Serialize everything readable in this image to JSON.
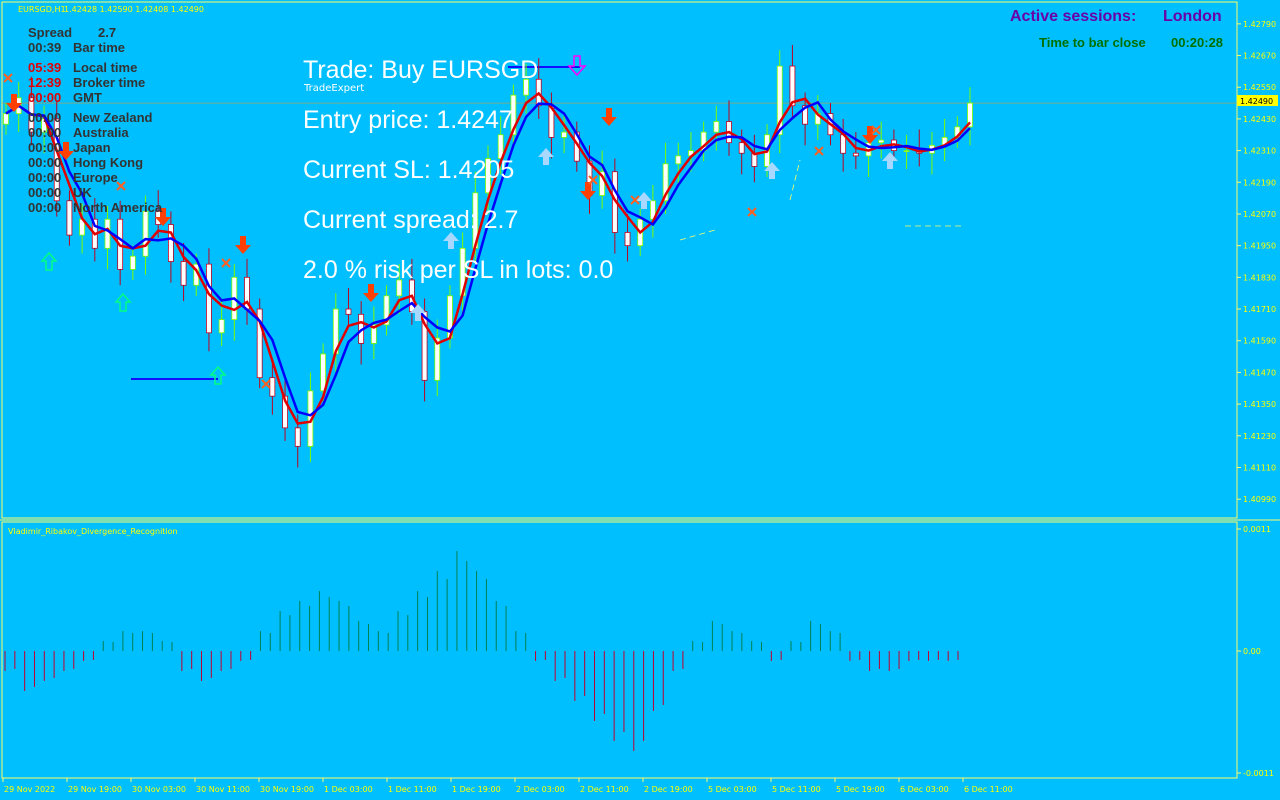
{
  "colors": {
    "background": "#00bfff",
    "frame": "#ffff66",
    "axis_text": "#ffff00",
    "bull_candle": "#ffffff",
    "bear_candle": "#ffffff",
    "wick_bull": "#7cfc00",
    "wick_bear": "#c00020",
    "ma_red": "#e00000",
    "ma_blue": "#0000ff",
    "sell_arrow": "#ff4000",
    "buy_arrow": "#a8d8ff",
    "price_tag_bg": "#ffff00",
    "session_color": "#6a00a8",
    "time_close_color": "#007000",
    "hist_pos": "#008050",
    "hist_neg": "#c00030"
  },
  "chart_header": {
    "symbol_label": "EURSGD,H1",
    "ohlc": "1.42428 1.42590 1.42408 1.42490"
  },
  "info_panel": {
    "spread_label": "Spread",
    "spread_value": "2.7",
    "bar_time": "00:39",
    "bar_time_label": "Bar time",
    "local_time": "05:39",
    "local_time_label": "Local time",
    "broker_time": "12:39",
    "broker_time_label": "Broker time",
    "gmt_time": "00:00",
    "gmt_label": "GMT",
    "sessions": [
      {
        "time": "00:00",
        "name": "New Zealand"
      },
      {
        "time": "00:00",
        "name": "Australia"
      },
      {
        "time": "00:00",
        "name": "Japan"
      },
      {
        "time": "00:00",
        "name": "Hong Kong"
      },
      {
        "time": "00:00",
        "name": "Europe"
      },
      {
        "time": "00:00",
        "name": "UK"
      },
      {
        "time": "00:00",
        "name": "North America"
      }
    ]
  },
  "trade_panel": {
    "trade": "Trade: Buy EURSGD",
    "expert": "TradeExpert",
    "entry": "Entry price: 1.4247",
    "current_sl": "Current SL: 1.4205",
    "spread": "Current spread: 2.7",
    "risk": "2.0 % risk per SL in lots: 0.0"
  },
  "sessions_header": {
    "label": "Active sessions:",
    "value": "London",
    "time_to_close_label": "Time to bar close",
    "time_to_close": "00:20:28"
  },
  "price_axis": {
    "ticks": [
      "1.42790",
      "1.42670",
      "1.42550",
      "1.42430",
      "1.42310",
      "1.42190",
      "1.42070",
      "1.41950",
      "1.41830",
      "1.41710",
      "1.41590",
      "1.41470",
      "1.41350",
      "1.41230",
      "1.41110",
      "1.40990"
    ],
    "current_price": "1.42490"
  },
  "indicator": {
    "name": "Vladimir_Ribakov_Divergence_Recognition",
    "ticks": [
      "0.0011",
      "0.00",
      "-0.0011"
    ]
  },
  "time_axis": {
    "labels": [
      "29 Nov 2022",
      "29 Nov 19:00",
      "30 Nov 03:00",
      "30 Nov 11:00",
      "30 Nov 19:00",
      "1 Dec 03:00",
      "1 Dec 11:00",
      "1 Dec 19:00",
      "2 Dec 03:00",
      "2 Dec 11:00",
      "2 Dec 19:00",
      "5 Dec 03:00",
      "5 Dec 11:00",
      "5 Dec 19:00",
      "6 Dec 03:00",
      "6 Dec 11:00"
    ]
  },
  "chart_data": {
    "type": "candlestick",
    "symbol": "EURSGD",
    "timeframe": "H1",
    "ylim": [
      1.4093,
      1.4285
    ],
    "closes": [
      1.4245,
      1.4251,
      1.4238,
      1.4243,
      1.4212,
      1.4199,
      1.4205,
      1.4194,
      1.4205,
      1.4186,
      1.4191,
      1.4208,
      1.4203,
      1.4189,
      1.418,
      1.4188,
      1.4162,
      1.4167,
      1.4183,
      1.4171,
      1.4145,
      1.4138,
      1.4126,
      1.4119,
      1.414,
      1.4154,
      1.4171,
      1.4169,
      1.4158,
      1.4165,
      1.4176,
      1.4182,
      1.417,
      1.4144,
      1.416,
      1.4176,
      1.4194,
      1.4215,
      1.4228,
      1.4237,
      1.4252,
      1.4258,
      1.4248,
      1.4236,
      1.4238,
      1.4227,
      1.4214,
      1.4223,
      1.42,
      1.4195,
      1.4205,
      1.4212,
      1.4226,
      1.4229,
      1.4231,
      1.4238,
      1.4242,
      1.4234,
      1.423,
      1.4225,
      1.4237,
      1.4263,
      1.4248,
      1.4241,
      1.4245,
      1.4237,
      1.423,
      1.4229,
      1.4234,
      1.4235,
      1.4231,
      1.4231,
      1.423,
      1.4233,
      1.4236,
      1.424,
      1.4249
    ],
    "price_marker": 1.4249,
    "histogram": [
      -0.0002,
      -0.0004,
      -0.0003,
      -0.0002,
      -0.0001,
      0.0001,
      0.0002,
      0.0002,
      0.0001,
      -0.0002,
      -0.0003,
      -0.0002,
      -0.0001,
      0.0002,
      0.0004,
      0.0005,
      0.0006,
      0.0005,
      0.0003,
      0.0002,
      0.0004,
      0.0006,
      0.0008,
      0.001,
      0.0008,
      0.0005,
      0.0002,
      -0.0001,
      -0.0003,
      -0.0005,
      -0.0007,
      -0.0009,
      -0.001,
      -0.0006,
      -0.0002,
      0.0001,
      0.0003,
      0.0002,
      0.0001,
      -0.0001,
      0.0001,
      0.0003,
      0.0002,
      -0.0001,
      -0.0002,
      -0.0002,
      -0.0001,
      -0.0001,
      -0.0001
    ]
  }
}
